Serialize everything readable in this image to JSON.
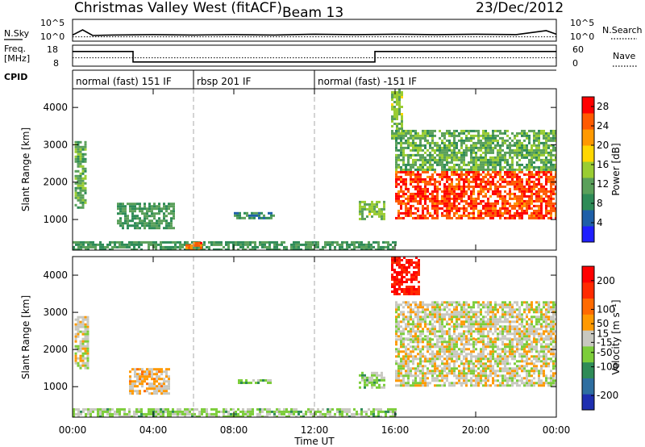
{
  "header": {
    "station": "Christmas Valley West (fitACF)",
    "beam": "Beam 13",
    "date": "23/Dec/2012"
  },
  "chart_data": [
    {
      "type": "line",
      "name": "noise-panel",
      "left_label": "N.Sky",
      "right_label": "N.Search",
      "left_ticks": [
        "10^5",
        "10^0"
      ],
      "right_ticks": [
        "10^5",
        "10^0"
      ],
      "series": [
        {
          "name": "N.Sky",
          "style": "solid",
          "x": [
            0,
            0.5,
            1,
            2,
            4,
            6,
            8,
            10,
            12,
            14,
            16,
            18,
            20,
            22,
            23.5,
            24
          ],
          "y": [
            1.4,
            2.6,
            1.3,
            1.4,
            1.5,
            1.4,
            1.5,
            1.4,
            1.6,
            1.5,
            1.6,
            1.5,
            1.6,
            1.5,
            2.4,
            1.6
          ]
        },
        {
          "name": "N.Search",
          "style": "dotted",
          "x": [
            0,
            24
          ],
          "y": [
            1.0,
            1.0
          ]
        }
      ],
      "ylim": [
        0,
        5
      ]
    },
    {
      "type": "line",
      "name": "frequency-panel",
      "left_label": "Freq. [MHz]",
      "right_label": "Nave",
      "left_ticks": [
        "18",
        "8"
      ],
      "right_ticks": [
        "60",
        "0"
      ],
      "series": [
        {
          "name": "Freq",
          "style": "solid",
          "x": [
            0,
            3.0,
            3.0,
            15.0,
            15.0,
            24
          ],
          "y": [
            15,
            15,
            10,
            10,
            15,
            15
          ]
        },
        {
          "name": "Nave",
          "style": "dotted",
          "x": [
            0,
            24
          ],
          "y": [
            12,
            12
          ]
        }
      ],
      "ylim": [
        8,
        18
      ]
    },
    {
      "type": "table",
      "name": "cpid-strip",
      "label": "CPID",
      "segments": [
        {
          "start": 0,
          "end": 6,
          "text": "normal (fast) 151 IF"
        },
        {
          "start": 6,
          "end": 12,
          "text": "rbsp 201 IF"
        },
        {
          "start": 12,
          "end": 24,
          "text": "normal (fast) -151 IF"
        }
      ]
    },
    {
      "type": "heatmap",
      "name": "power-panel",
      "ylabel": "Slant Range [km]",
      "xlim": [
        0,
        24
      ],
      "ylim": [
        180,
        4500
      ],
      "yticks": [
        1000,
        2000,
        3000,
        4000
      ],
      "colorbar": {
        "label": "Power [dB]",
        "ticks": [
          4,
          8,
          12,
          16,
          20,
          24,
          28
        ],
        "range": [
          0,
          30
        ],
        "colors": [
          "#1f1fff",
          "#1e5fa8",
          "#2e8b57",
          "#5aa05a",
          "#9acd32",
          "#ffd700",
          "#ff9900",
          "#ff5a00",
          "#ff0000"
        ]
      },
      "regions": [
        {
          "t0": 0.1,
          "t1": 0.7,
          "r0": 1300,
          "r1": 3100,
          "level": 12
        },
        {
          "t0": 2.2,
          "t1": 5.0,
          "r0": 750,
          "r1": 1450,
          "level": 10
        },
        {
          "t0": 0.0,
          "t1": 16.0,
          "r0": 200,
          "r1": 420,
          "level": 10
        },
        {
          "t0": 5.6,
          "t1": 6.4,
          "r0": 200,
          "r1": 400,
          "level": 24
        },
        {
          "t0": 8.0,
          "t1": 10.0,
          "r0": 1050,
          "r1": 1200,
          "level": 8
        },
        {
          "t0": 14.2,
          "t1": 15.4,
          "r0": 1000,
          "r1": 1500,
          "level": 14
        },
        {
          "t0": 15.8,
          "t1": 16.3,
          "r0": 3200,
          "r1": 4500,
          "level": 14
        },
        {
          "t0": 16.0,
          "t1": 24.0,
          "r0": 1050,
          "r1": 2300,
          "level": 26
        },
        {
          "t0": 16.0,
          "t1": 24.0,
          "r0": 2300,
          "r1": 3400,
          "level": 12
        }
      ]
    },
    {
      "type": "heatmap",
      "name": "velocity-panel",
      "ylabel": "Slant Range [km]",
      "xlim": [
        0,
        24
      ],
      "ylim": [
        180,
        4500
      ],
      "yticks": [
        1000,
        2000,
        3000,
        4000
      ],
      "colorbar": {
        "label": "Velocity [m s⁻¹]",
        "ticks": [
          200,
          100,
          50,
          15,
          -15,
          -50,
          -100,
          -200
        ],
        "range": [
          -250,
          250
        ],
        "colors": [
          "#1e2fb0",
          "#2e6ea0",
          "#2e8b57",
          "#7ccd3a",
          "#c8c8c0",
          "#ff9900",
          "#ff6a00",
          "#ff2a00",
          "#ff0000"
        ]
      },
      "regions": [
        {
          "t0": 0.1,
          "t1": 0.8,
          "r0": 1500,
          "r1": 2900,
          "level": 0
        },
        {
          "t0": 2.8,
          "t1": 4.8,
          "r0": 800,
          "r1": 1500,
          "level": 40
        },
        {
          "t0": 0.0,
          "t1": 16.0,
          "r0": 200,
          "r1": 420,
          "level": -40
        },
        {
          "t0": 8.2,
          "t1": 9.8,
          "r0": 1080,
          "r1": 1200,
          "level": -40
        },
        {
          "t0": 14.2,
          "t1": 15.4,
          "r0": 950,
          "r1": 1400,
          "level": -40
        },
        {
          "t0": 15.8,
          "t1": 17.2,
          "r0": 3500,
          "r1": 4500,
          "level": 200
        },
        {
          "t0": 16.0,
          "t1": 24.0,
          "r0": 1050,
          "r1": 2300,
          "level": 0
        },
        {
          "t0": 16.0,
          "t1": 24.0,
          "r0": 2300,
          "r1": 3300,
          "level": 0
        }
      ]
    }
  ],
  "x_axis": {
    "label": "Time UT",
    "ticks": [
      "00:00",
      "04:00",
      "08:00",
      "12:00",
      "16:00",
      "20:00",
      "00:00"
    ],
    "range": [
      0,
      24
    ]
  }
}
